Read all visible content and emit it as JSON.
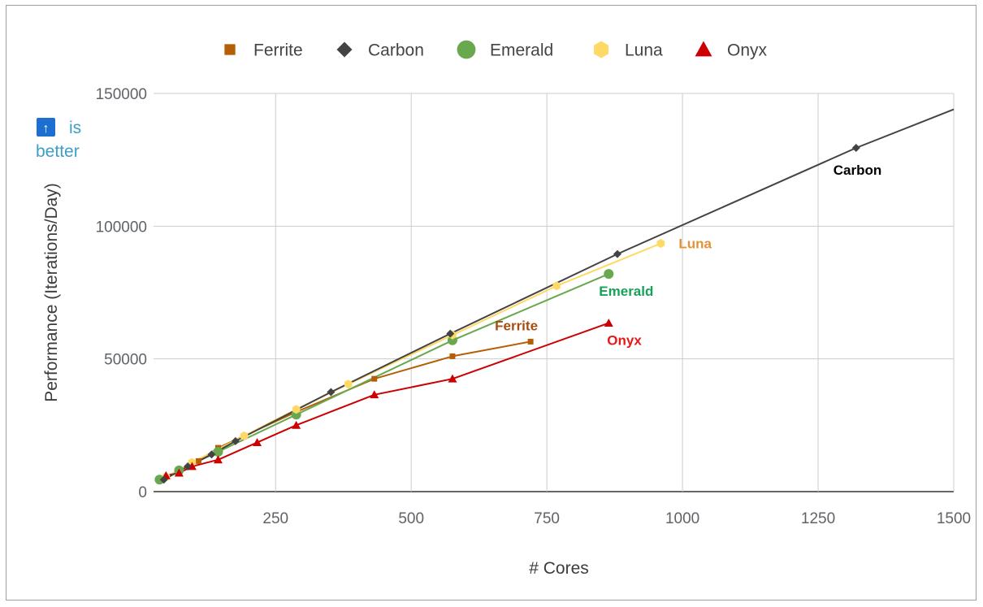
{
  "chart_data": {
    "type": "line",
    "xlabel": "# Cores",
    "ylabel": "Performance (Iterations/Day)",
    "xlim": [
      25,
      1500
    ],
    "ylim": [
      0,
      150000
    ],
    "x_ticks": [
      "250",
      "500",
      "750",
      "1000",
      "1250",
      "1500"
    ],
    "y_ticks": [
      "0",
      "50000",
      "100000",
      "150000"
    ],
    "grid": true,
    "legend_position": "top",
    "hint": {
      "arrow": "↑",
      "line1": "is",
      "line2": "better"
    },
    "series": [
      {
        "name": "Ferrite",
        "color": "#b45f06",
        "marker": "square",
        "points": [
          [
            36,
            4500
          ],
          [
            72,
            8000
          ],
          [
            108,
            11500
          ],
          [
            144,
            16500
          ],
          [
            288,
            30000
          ],
          [
            432,
            42500
          ],
          [
            576,
            51000
          ],
          [
            720,
            56500
          ]
        ],
        "label": "Ferrite"
      },
      {
        "name": "Carbon",
        "color": "#434343",
        "marker": "diamond",
        "points": [
          [
            44,
            4500
          ],
          [
            88,
            9500
          ],
          [
            132,
            14000
          ],
          [
            176,
            19000
          ],
          [
            352,
            37500
          ],
          [
            572,
            59500
          ],
          [
            880,
            89500
          ],
          [
            1320,
            129500
          ],
          [
            1500,
            144000
          ]
        ],
        "label": "Carbon"
      },
      {
        "name": "Emerald",
        "color": "#6aa84f",
        "marker": "circle",
        "points": [
          [
            36,
            4500
          ],
          [
            72,
            8000
          ],
          [
            144,
            15000
          ],
          [
            288,
            29000
          ],
          [
            576,
            57000
          ],
          [
            864,
            82000
          ]
        ],
        "label": "Emerald"
      },
      {
        "name": "Luna",
        "color": "#ffd966",
        "marker": "hexagon",
        "points": [
          [
            48,
            5500
          ],
          [
            96,
            11000
          ],
          [
            192,
            21000
          ],
          [
            288,
            31000
          ],
          [
            384,
            40500
          ],
          [
            576,
            59000
          ],
          [
            768,
            77500
          ],
          [
            960,
            93500
          ]
        ],
        "label": "Luna"
      },
      {
        "name": "Onyx",
        "color": "#cc0000",
        "marker": "triangle",
        "points": [
          [
            48,
            6000
          ],
          [
            72,
            7000
          ],
          [
            96,
            9500
          ],
          [
            144,
            12000
          ],
          [
            216,
            18500
          ],
          [
            288,
            25000
          ],
          [
            432,
            36500
          ],
          [
            576,
            42500
          ],
          [
            864,
            63500
          ]
        ],
        "label": "Onyx"
      }
    ]
  },
  "annotations": [
    {
      "series": "Carbon",
      "text": "Carbon",
      "color": "#000000"
    },
    {
      "series": "Luna",
      "text": "Luna",
      "color": "#e69138"
    },
    {
      "series": "Emerald",
      "text": "Emerald",
      "color": "#18a15a"
    },
    {
      "series": "Ferrite",
      "text": "Ferrite",
      "color": "#a64d11"
    },
    {
      "series": "Onyx",
      "text": "Onyx",
      "color": "#e61919"
    }
  ]
}
